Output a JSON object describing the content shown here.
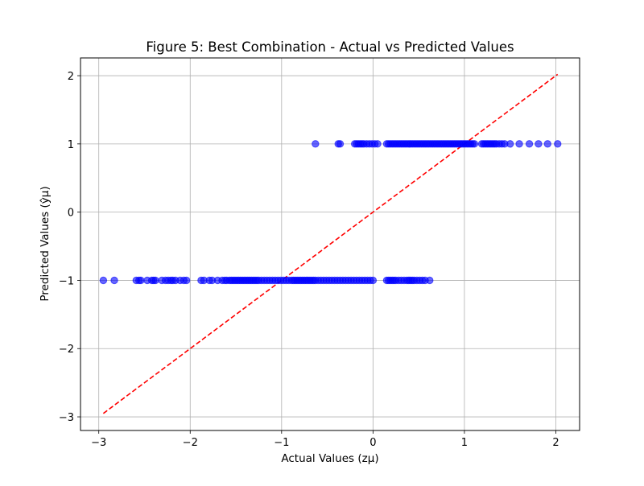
{
  "chart_data": {
    "type": "scatter",
    "title": "Figure 5: Best Combination - Actual vs Predicted Values",
    "xlabel": "Actual Values (zμ)",
    "ylabel": "Predicted Values (ŷμ)",
    "xlim": [
      -3.2,
      2.26
    ],
    "ylim": [
      -3.2,
      2.26
    ],
    "xticks": [
      -3,
      -2,
      -1,
      0,
      1,
      2
    ],
    "yticks": [
      -3,
      -2,
      -1,
      0,
      1,
      2
    ],
    "xtick_labels": [
      "−3",
      "−2",
      "−1",
      "0",
      "1",
      "2"
    ],
    "ytick_labels": [
      "−3",
      "−2",
      "−1",
      "0",
      "1",
      "2"
    ],
    "grid": true,
    "point_color": "#0000ff",
    "point_alpha": 0.6,
    "line_color": "#ff0000",
    "line_style": "dashed",
    "reference_line": {
      "x": [
        -2.95,
        2.02
      ],
      "y": [
        -2.95,
        2.02
      ]
    },
    "series": [
      {
        "predicted": -1,
        "actual": [
          -2.95,
          -2.83,
          -2.59,
          -2.56,
          -2.54,
          -2.47,
          -2.42,
          -2.4,
          -2.38,
          -2.31,
          -2.27,
          -2.24,
          -2.21,
          -2.19,
          -2.16,
          -2.11,
          -2.07,
          -2.04,
          -1.88,
          -1.85,
          -1.79,
          -1.76,
          -1.7,
          -1.65,
          -1.62,
          -1.6,
          -1.57,
          -1.55,
          -1.53,
          -1.51,
          -1.49,
          -1.47,
          -1.45,
          -1.43,
          -1.41,
          -1.39,
          -1.37,
          -1.35,
          -1.33,
          -1.31,
          -1.29,
          -1.27,
          -1.25,
          -1.22,
          -1.19,
          -1.16,
          -1.13,
          -1.1,
          -1.07,
          -1.04,
          -1.01,
          -0.98,
          -0.95,
          -0.92,
          -0.89,
          -0.87,
          -0.85,
          -0.83,
          -0.81,
          -0.79,
          -0.77,
          -0.75,
          -0.73,
          -0.71,
          -0.69,
          -0.67,
          -0.65,
          -0.63,
          -0.6,
          -0.57,
          -0.54,
          -0.51,
          -0.48,
          -0.45,
          -0.42,
          -0.39,
          -0.36,
          -0.33,
          -0.3,
          -0.27,
          -0.24,
          -0.21,
          -0.18,
          -0.15,
          -0.12,
          -0.09,
          -0.06,
          -0.03,
          0.0,
          0.15,
          0.17,
          0.19,
          0.21,
          0.23,
          0.25,
          0.28,
          0.31,
          0.34,
          0.37,
          0.39,
          0.41,
          0.43,
          0.45,
          0.48,
          0.51,
          0.54,
          0.57,
          0.62
        ]
      },
      {
        "predicted": 1,
        "actual": [
          -0.63,
          -0.38,
          -0.36,
          -0.2,
          -0.18,
          -0.16,
          -0.14,
          -0.12,
          -0.1,
          -0.07,
          -0.04,
          -0.01,
          0.02,
          0.05,
          0.15,
          0.17,
          0.19,
          0.21,
          0.23,
          0.25,
          0.27,
          0.29,
          0.31,
          0.33,
          0.35,
          0.37,
          0.39,
          0.41,
          0.43,
          0.45,
          0.47,
          0.49,
          0.51,
          0.53,
          0.55,
          0.57,
          0.59,
          0.61,
          0.63,
          0.65,
          0.67,
          0.69,
          0.71,
          0.73,
          0.75,
          0.77,
          0.79,
          0.81,
          0.83,
          0.85,
          0.87,
          0.89,
          0.91,
          0.93,
          0.95,
          0.97,
          0.99,
          1.01,
          1.03,
          1.05,
          1.07,
          1.09,
          1.11,
          1.19,
          1.21,
          1.23,
          1.25,
          1.27,
          1.29,
          1.31,
          1.33,
          1.35,
          1.38,
          1.41,
          1.44,
          1.5,
          1.6,
          1.71,
          1.81,
          1.91,
          2.02
        ]
      }
    ]
  }
}
